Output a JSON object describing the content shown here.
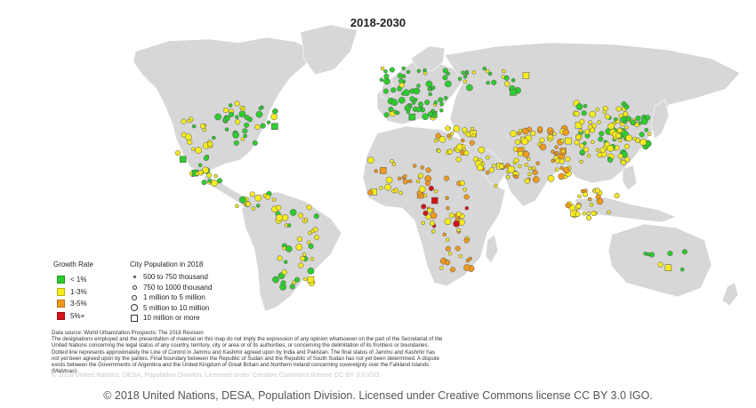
{
  "title": "2018-2030",
  "colors": {
    "land": "#d7d7d7",
    "land_stroke": "#ffffff",
    "low": "#2ecc2e",
    "mid": "#f5eb1e",
    "high": "#f0991e",
    "vhigh": "#d0161a"
  },
  "legend_growth": {
    "title": "Growth Rate",
    "items": [
      {
        "label": "< 1%",
        "color": "#2ecc2e"
      },
      {
        "label": "1-3%",
        "color": "#f5eb1e"
      },
      {
        "label": "3-5%",
        "color": "#f0991e"
      },
      {
        "label": "5%+",
        "color": "#d0161a"
      }
    ]
  },
  "legend_population": {
    "title": "City Population in 2018",
    "items": [
      {
        "label": "500 to 750 thousand",
        "shape": "circle-xs"
      },
      {
        "label": "750 to 1000 thousand",
        "shape": "circle-s"
      },
      {
        "label": "1 million to 5 million",
        "shape": "circle-m"
      },
      {
        "label": "5 million to 10 million",
        "shape": "circle-l"
      },
      {
        "label": "10 million or more",
        "shape": "square"
      }
    ]
  },
  "notes": {
    "source": "Data source: World Urbanization Prospects: The 2018 Revision",
    "disclaimer": "The designations employed and the presentation of material on this map do not imply the expression of any opinion whatsoever on the part of the Secretariat of the United Nations concerning the legal status of any country, territory, city or area or of its authorities, or concerning the delimitation of its frontiers or boundaries. Dotted line represents approximately the Line of Control in Jammu and Kashmir agreed upon by India and Pakistan. The final status of Jammu and Kashmir has not yet been agreed upon by the parties. Final boundary between the Republic of Sudan and the Republic of South Sudan has not yet been determined. A dispute exists between the Governments of Argentina and the United Kingdom of Great Britain and Northern Ireland concerning sovereignty over the Falkland Islands (Malvinas)."
  },
  "faint_copyright": "© 2018 United Nations, DESA, Population Division. Licensed under Creative Commons license CC BY 3.0 IGO.",
  "footer": "© 2018 United Nations, DESA, Population Division. Licensed under Creative Commons license CC BY 3.0 IGO."
}
